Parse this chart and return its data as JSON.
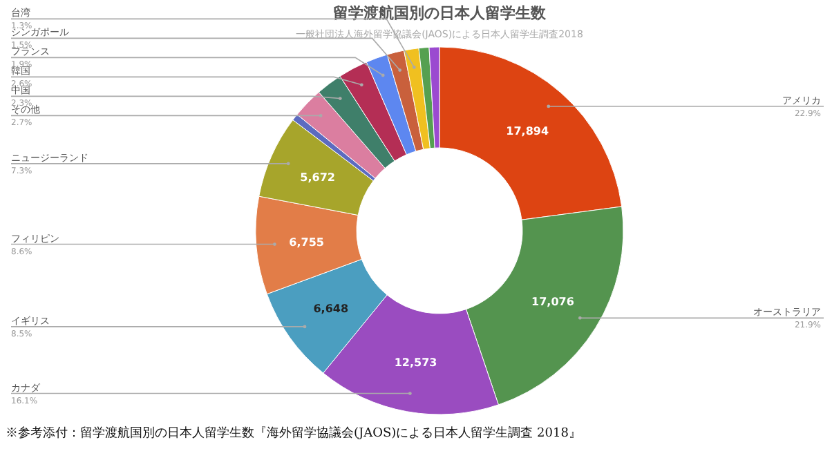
{
  "chart_data": {
    "type": "donut",
    "title": "留学渡航国別の日本人留学生数",
    "subtitle": "一般社団法人海外留学協議会(JAOS)による日本人留学生調査2018",
    "categories": [
      "アメリカ",
      "オーストラリア",
      "カナダ",
      "イギリス",
      "フィリピン",
      "ニュージーランド",
      null,
      "その他",
      "中国",
      "韓国",
      "フランス",
      "シンガポール",
      "台湾",
      null,
      null
    ],
    "values": [
      22.9,
      21.9,
      16.1,
      8.5,
      8.6,
      7.3,
      0.6,
      2.7,
      2.3,
      2.6,
      1.9,
      1.5,
      1.3,
      0.9,
      0.9
    ],
    "colors": [
      "#dd4412",
      "#54944f",
      "#9a4cc0",
      "#4b9ec0",
      "#e27d48",
      "#a7a52b",
      "#5c6bc0",
      "#db7ea0",
      "#3f7f6a",
      "#b42e55",
      "#5d87f0",
      "#c9603c",
      "#f0c020",
      "#55a050",
      "#9b4ad0"
    ],
    "value_labels": [
      "22.9%",
      "21.9%",
      "16.1%",
      "8.5%",
      "8.6%",
      "7.3%",
      null,
      "2.7%",
      "2.3%",
      "2.6%",
      "1.9%",
      "1.5%",
      "1.3%",
      null,
      null
    ],
    "annotations": [
      {
        "text": "17,894",
        "x": "アメリカ"
      },
      {
        "text": "17,076",
        "x": "オーストラリア"
      },
      {
        "text": "12,573",
        "x": "カナダ"
      },
      {
        "text": "6,648",
        "x": "イギリス"
      },
      {
        "text": "6,755",
        "x": "フィリピン"
      },
      {
        "text": "5,672",
        "x": "ニュージーランド"
      },
      "※参考添付：留学渡航国別の日本人留学生数『海外留学協議会(JAOS)による日本人留学生調査 2018』"
    ]
  }
}
